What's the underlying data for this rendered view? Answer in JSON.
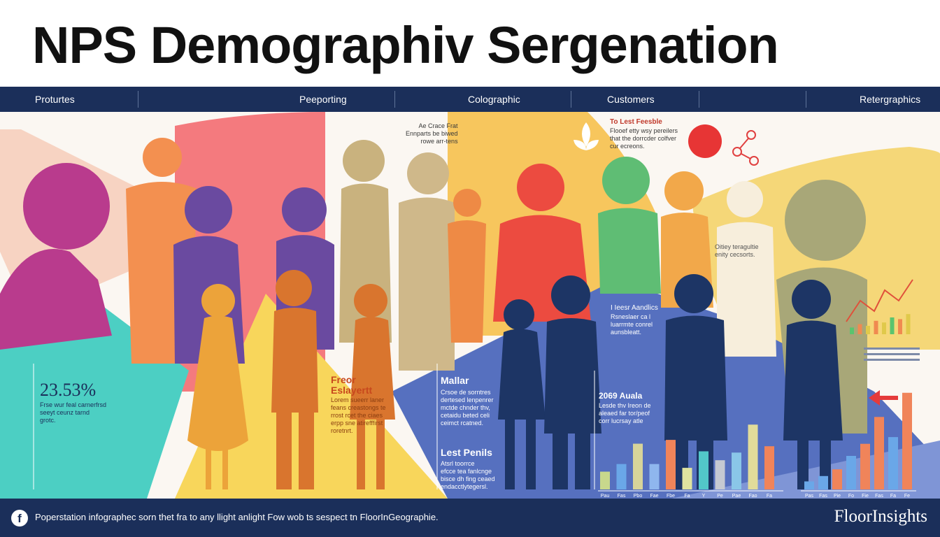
{
  "title": "NPS Demographiv Sergenation",
  "nav": {
    "items": [
      "Proturtes",
      "Peeporting",
      "Colographic",
      "Customers",
      "Retergraphics"
    ]
  },
  "stage": {
    "top_note": "Ae Crace Frat\nEnnparts be biwed\nrowe arr-tens",
    "top_right_heading": "To Lest Feesble",
    "top_right_text": "Flooef etty wsy pereilers\nthat the dorrcder colfver\ncur ecreons.",
    "right_note": "Oitiey teragultie\nenity cecsorts.",
    "stat_value": "23.53%",
    "stat_text": "Frse wur feal carnerfrsd\nseeyt ceunz tarnd\ngrotc.",
    "orange_heading": "Freor\nEslayertt",
    "orange_text": "Lorem sueerr laner\nfeans creastongs te\nrrost rcet the ciaes\nerpp sne atirefffirst\nroretnrt.",
    "mid_heading": "Mallar",
    "mid_text": "Crsoe de sorntres\ndertesed lenpenrer\nmctde chnder thv,\ncetaidu beted celi\nceimct rcatned.",
    "lower_heading": "Lest Penils",
    "lower_text": "Atsrl toorrce\nefcce tea fanlcnge\nbisce dh fing ceaed\nendacctlytegersl.",
    "first_heading": "I Ieesr Aandlics",
    "first_text": "Rsneslaer ca l\nluarrmte conrel\naunsbleatt.",
    "year_heading": "2069 Auala",
    "year_text": "Lesde thv Ireon de\naleaed far tor/peof\ncorr lucrsay atle",
    "arrow": "arrow-left-icon"
  },
  "chart_data": [
    {
      "type": "bar",
      "values": [
        28,
        40,
        72,
        40,
        78,
        34,
        60,
        46,
        58,
        102,
        68
      ],
      "colors": [
        "#c8d88c",
        "#6aa7e8",
        "#d7d49a",
        "#8fb6ee",
        "#f0845a",
        "#dfe3a0",
        "#52c7c9",
        "#c5c9d2",
        "#8ac6e8",
        "#e1dc9a",
        "#f0845a"
      ],
      "tick_labels": [
        "Pau",
        "Fas",
        "Pbo",
        "Fae",
        "Fbe",
        "Fa",
        "Y",
        "Pe",
        "Pae",
        "Fao",
        "Fa"
      ]
    },
    {
      "type": "bar",
      "values": [
        12,
        20,
        30,
        50,
        68,
        108,
        78,
        144
      ],
      "colors": [
        "#6aa7e8",
        "#6aa7e8",
        "#f0845a",
        "#6aa7e8",
        "#f0845a",
        "#f0845a",
        "#6aa7e8",
        "#f0845a"
      ],
      "tick_labels": [
        "Pas",
        "Fas",
        "Pie",
        "Fo",
        "Fie",
        "Fas",
        "Fa",
        "Fe"
      ]
    },
    {
      "type": "bar",
      "values": [
        8,
        12,
        10,
        16,
        14,
        20,
        18,
        24
      ],
      "colors": [
        "#5bc46e",
        "#f08a50",
        "#e0c94a",
        "#f08a50",
        "#e0c94a",
        "#5bc46e",
        "#f08a50",
        "#e0c94a"
      ]
    }
  ],
  "footer": {
    "icon": "facebook-icon",
    "icon_glyph": "f",
    "text": "Poperstation infographec sorn thet fra to any llight anlight Fow wob ts sespect tn FloorInGeographie.",
    "brand": "FloorInsights"
  }
}
